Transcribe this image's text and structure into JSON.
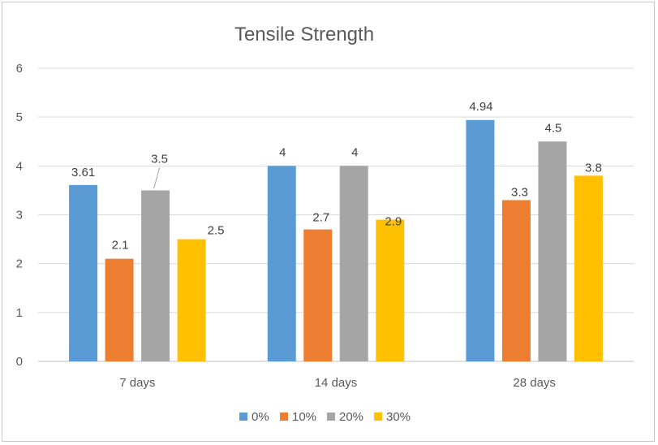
{
  "chart_data": {
    "type": "bar",
    "title": "Tensile Strength",
    "categories": [
      "7 days",
      "14 days",
      "28 days"
    ],
    "series": [
      {
        "name": "0%",
        "color": "#5b9bd5",
        "values": [
          3.61,
          4,
          4.94
        ]
      },
      {
        "name": "10%",
        "color": "#ed7d31",
        "values": [
          2.1,
          2.7,
          3.3
        ]
      },
      {
        "name": "20%",
        "color": "#a5a5a5",
        "values": [
          3.5,
          4,
          4.5
        ]
      },
      {
        "name": "30%",
        "color": "#ffc000",
        "values": [
          2.5,
          2.9,
          3.8
        ]
      }
    ],
    "data_labels": [
      [
        "3.61",
        "4",
        "4.94"
      ],
      [
        "2.1",
        "2.7",
        "3.3"
      ],
      [
        "3.5",
        "4",
        "4.5"
      ],
      [
        "2.5",
        "2.9",
        "3.8"
      ]
    ],
    "yticks": [
      "0",
      "1",
      "2",
      "3",
      "4",
      "5",
      "6"
    ],
    "ylim": [
      0,
      6
    ],
    "xlabel": "",
    "ylabel": "",
    "grid": true,
    "legend_position": "bottom"
  }
}
